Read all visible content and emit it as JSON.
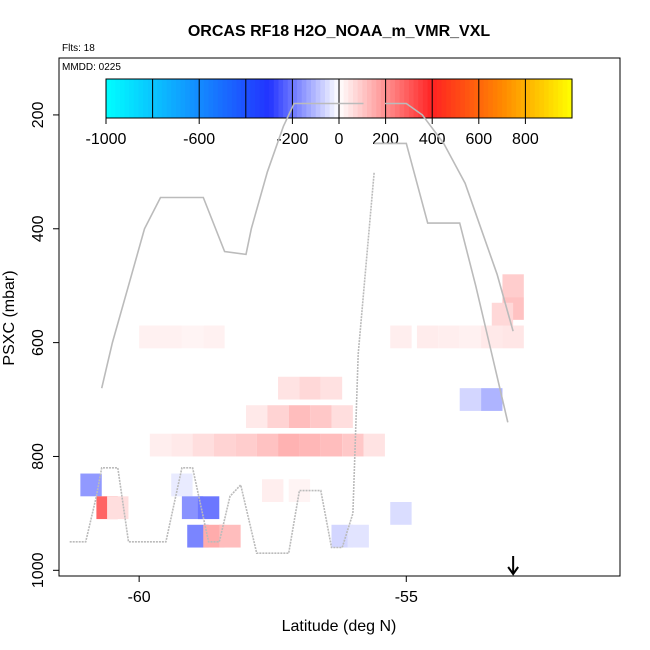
{
  "chart_data": {
    "type": "heatmap",
    "title": "ORCAS RF18 H2O_NOAA_m_VMR_VXL",
    "flights_label": "Flts: 18",
    "date_label": "MMDD: 0225",
    "xlabel": "Latitude (deg N)",
    "ylabel": "PSXC (mbar)",
    "xlim": [
      -61.5,
      -51.0
    ],
    "ylim": [
      1010,
      100
    ],
    "y_reversed": true,
    "x_ticks": [
      -60,
      -55
    ],
    "x_tick_labels": [
      "-60",
      "-55"
    ],
    "y_ticks": [
      200,
      400,
      600,
      800,
      1000
    ],
    "y_tick_labels": [
      "200",
      "400",
      "600",
      "800",
      "1000"
    ],
    "colorbar": {
      "range": [
        -1000,
        1000
      ],
      "ticks": [
        -1000,
        -600,
        -200,
        0,
        200,
        400,
        600,
        800
      ],
      "tick_labels": [
        "-1000",
        "-600",
        "-200",
        "0",
        "200",
        "400",
        "600",
        "800"
      ],
      "colors": {
        "min": "#00ffff",
        "low": "#2233ff",
        "mid": "#ffffff",
        "high": "#ff2222",
        "orange": "#ff8800",
        "max": "#ffff00"
      }
    },
    "cells": [
      {
        "lat": -59.8,
        "p": 590,
        "v": 25
      },
      {
        "lat": -59.4,
        "p": 590,
        "v": 25
      },
      {
        "lat": -59.0,
        "p": 590,
        "v": 20
      },
      {
        "lat": -58.6,
        "p": 590,
        "v": 25
      },
      {
        "lat": -55.1,
        "p": 590,
        "v": 30
      },
      {
        "lat": -54.6,
        "p": 590,
        "v": 35
      },
      {
        "lat": -54.2,
        "p": 590,
        "v": 30
      },
      {
        "lat": -53.8,
        "p": 590,
        "v": 25
      },
      {
        "lat": -53.4,
        "p": 590,
        "v": 40
      },
      {
        "lat": -53.0,
        "p": 590,
        "v": 45
      },
      {
        "lat": -53.0,
        "p": 500,
        "v": 90
      },
      {
        "lat": -53.0,
        "p": 540,
        "v": 110
      },
      {
        "lat": -53.2,
        "p": 550,
        "v": 70
      },
      {
        "lat": -53.8,
        "p": 700,
        "v": -60
      },
      {
        "lat": -53.4,
        "p": 700,
        "v": -110
      },
      {
        "lat": -57.2,
        "p": 680,
        "v": 50
      },
      {
        "lat": -56.8,
        "p": 680,
        "v": 70
      },
      {
        "lat": -56.4,
        "p": 680,
        "v": 55
      },
      {
        "lat": -57.8,
        "p": 730,
        "v": 40
      },
      {
        "lat": -57.4,
        "p": 730,
        "v": 80
      },
      {
        "lat": -57.0,
        "p": 730,
        "v": 120
      },
      {
        "lat": -56.6,
        "p": 730,
        "v": 100
      },
      {
        "lat": -56.2,
        "p": 730,
        "v": 60
      },
      {
        "lat": -59.6,
        "p": 780,
        "v": 30
      },
      {
        "lat": -59.2,
        "p": 780,
        "v": 40
      },
      {
        "lat": -58.8,
        "p": 780,
        "v": 60
      },
      {
        "lat": -58.4,
        "p": 780,
        "v": 80
      },
      {
        "lat": -58.0,
        "p": 780,
        "v": 90
      },
      {
        "lat": -57.6,
        "p": 780,
        "v": 110
      },
      {
        "lat": -57.2,
        "p": 780,
        "v": 140
      },
      {
        "lat": -56.8,
        "p": 780,
        "v": 130
      },
      {
        "lat": -56.4,
        "p": 780,
        "v": 120
      },
      {
        "lat": -56.0,
        "p": 780,
        "v": 100
      },
      {
        "lat": -55.6,
        "p": 780,
        "v": 50
      },
      {
        "lat": -60.9,
        "p": 850,
        "v": -150
      },
      {
        "lat": -60.6,
        "p": 890,
        "v": 280
      },
      {
        "lat": -60.4,
        "p": 890,
        "v": 60
      },
      {
        "lat": -59.2,
        "p": 850,
        "v": -30
      },
      {
        "lat": -59.0,
        "p": 890,
        "v": -160
      },
      {
        "lat": -58.7,
        "p": 890,
        "v": -200
      },
      {
        "lat": -58.9,
        "p": 940,
        "v": -180
      },
      {
        "lat": -58.6,
        "p": 940,
        "v": 150
      },
      {
        "lat": -58.3,
        "p": 940,
        "v": 120
      },
      {
        "lat": -57.5,
        "p": 860,
        "v": 30
      },
      {
        "lat": -57.0,
        "p": 860,
        "v": 20
      },
      {
        "lat": -56.2,
        "p": 940,
        "v": -60
      },
      {
        "lat": -55.9,
        "p": 940,
        "v": -40
      },
      {
        "lat": -55.1,
        "p": 900,
        "v": -50
      }
    ],
    "flight_track": [
      [
        -61.3,
        950
      ],
      [
        -61.0,
        950
      ],
      [
        -60.8,
        870
      ],
      [
        -60.7,
        820
      ],
      [
        -60.4,
        820
      ],
      [
        -60.2,
        950
      ],
      [
        -59.5,
        950
      ],
      [
        -59.2,
        820
      ],
      [
        -59.0,
        820
      ],
      [
        -58.7,
        950
      ],
      [
        -58.5,
        950
      ],
      [
        -58.3,
        870
      ],
      [
        -58.1,
        850
      ],
      [
        -57.8,
        970
      ],
      [
        -57.2,
        970
      ],
      [
        -57.0,
        860
      ],
      [
        -56.6,
        860
      ],
      [
        -56.4,
        960
      ],
      [
        -56.2,
        960
      ],
      [
        -56.0,
        900
      ],
      [
        -55.9,
        620
      ],
      [
        -55.6,
        300
      ]
    ],
    "flight_track_2": [
      [
        -60.7,
        680
      ],
      [
        -60.5,
        600
      ],
      [
        -60.2,
        500
      ],
      [
        -59.9,
        400
      ],
      [
        -59.6,
        345
      ],
      [
        -59.0,
        345
      ],
      [
        -58.8,
        345
      ],
      [
        -58.4,
        440
      ],
      [
        -58.0,
        445
      ],
      [
        -57.9,
        400
      ],
      [
        -57.6,
        300
      ],
      [
        -57.3,
        220
      ],
      [
        -57.1,
        180
      ],
      [
        -56.5,
        180
      ],
      [
        -55.8,
        180
      ]
    ],
    "flight_track_3": [
      [
        -55.4,
        180
      ],
      [
        -55.0,
        180
      ],
      [
        -54.7,
        200
      ],
      [
        -54.3,
        250
      ],
      [
        -53.9,
        320
      ],
      [
        -53.6,
        400
      ],
      [
        -53.3,
        480
      ],
      [
        -53.0,
        580
      ]
    ],
    "flight_track_4": [
      [
        -55.6,
        250
      ],
      [
        -55.0,
        250
      ],
      [
        -54.6,
        390
      ],
      [
        -54.0,
        390
      ],
      [
        -53.7,
        500
      ],
      [
        -53.4,
        620
      ],
      [
        -53.1,
        740
      ]
    ],
    "arrow_lat": -53.0
  }
}
